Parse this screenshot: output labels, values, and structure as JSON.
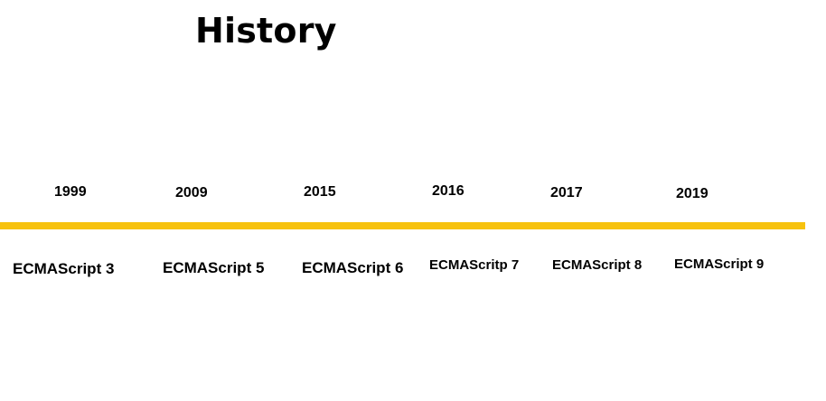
{
  "title": "History",
  "accent_color": "#f7c20e",
  "timeline": [
    {
      "year": "1999",
      "version": "ECMAScript 3"
    },
    {
      "year": "2009",
      "version": "ECMAScript 5"
    },
    {
      "year": "2015",
      "version": "ECMAScript 6"
    },
    {
      "year": "2016",
      "version": "ECMAScritp 7"
    },
    {
      "year": "2017",
      "version": "ECMAScript 8"
    },
    {
      "year": "2019",
      "version": "ECMAScript 9"
    }
  ]
}
